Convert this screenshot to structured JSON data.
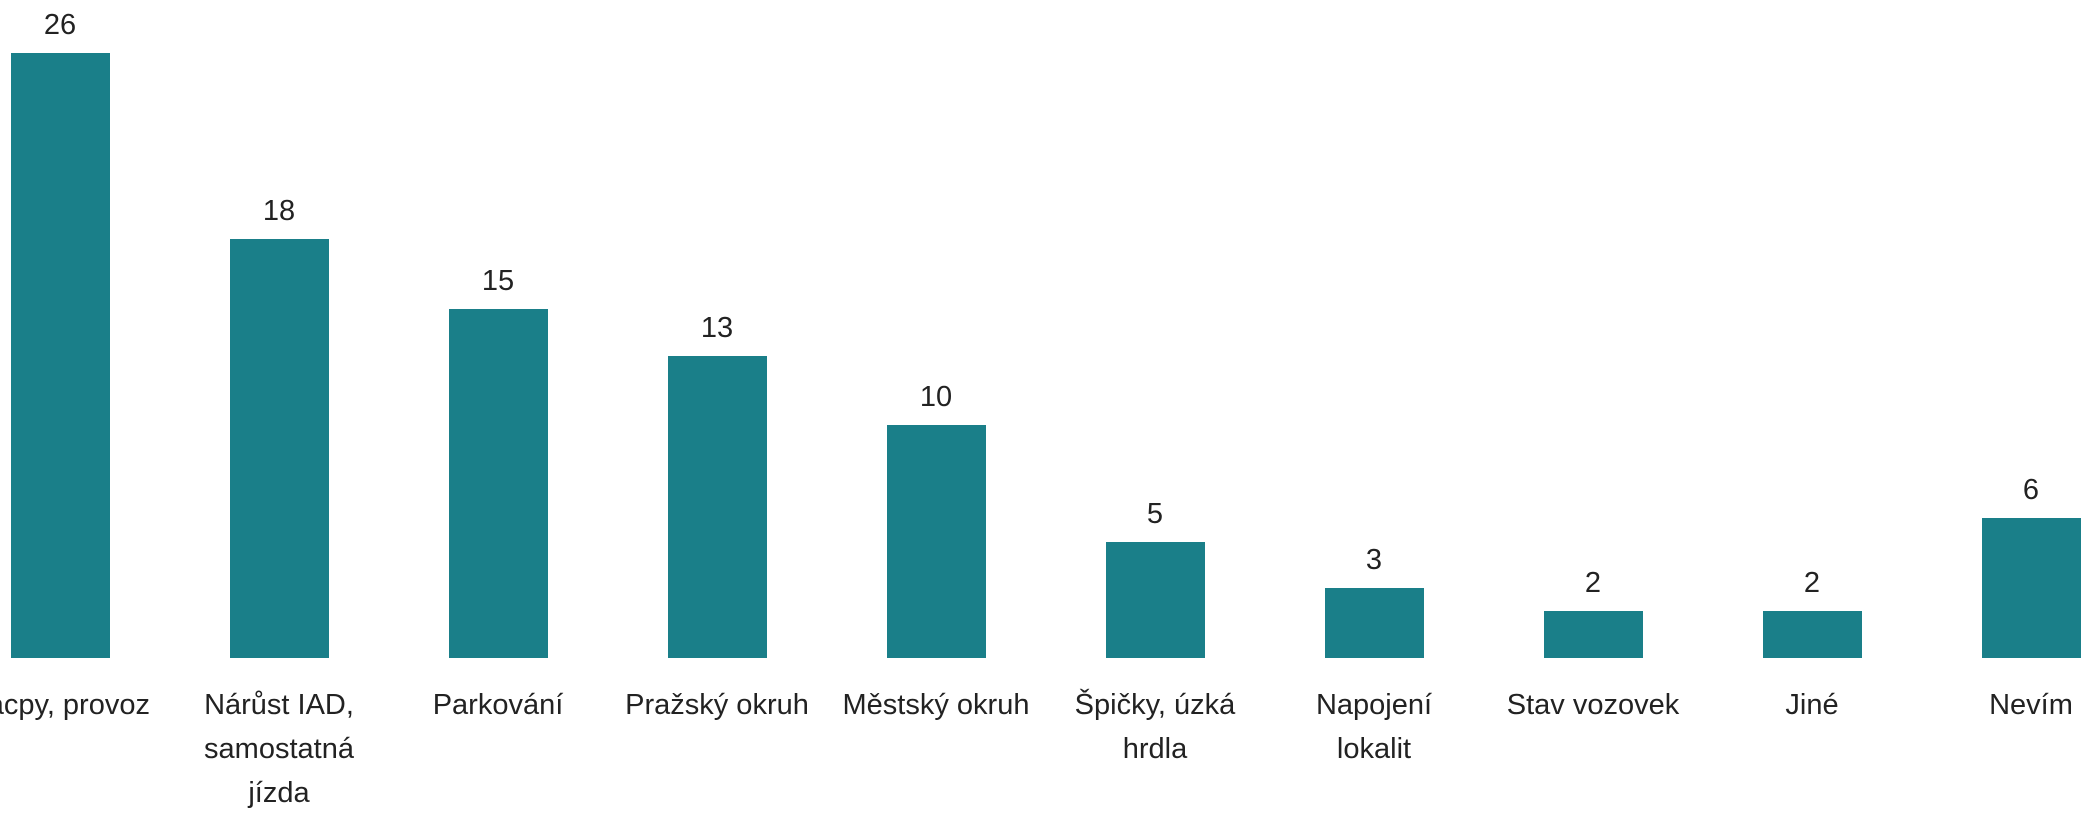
{
  "chart_data": {
    "type": "bar",
    "categories": [
      "Zácpy, provoz",
      "Nárůst IAD, samostatná jízda",
      "Parkování",
      "Pražský okruh",
      "Městský okruh",
      "Špičky, úzká hrdla",
      "Napojení lokalit",
      "Stav vozovek",
      "Jiné",
      "Nevím"
    ],
    "values": [
      26,
      18,
      15,
      13,
      10,
      5,
      3,
      2,
      2,
      6
    ],
    "color": "#1a7f89"
  }
}
